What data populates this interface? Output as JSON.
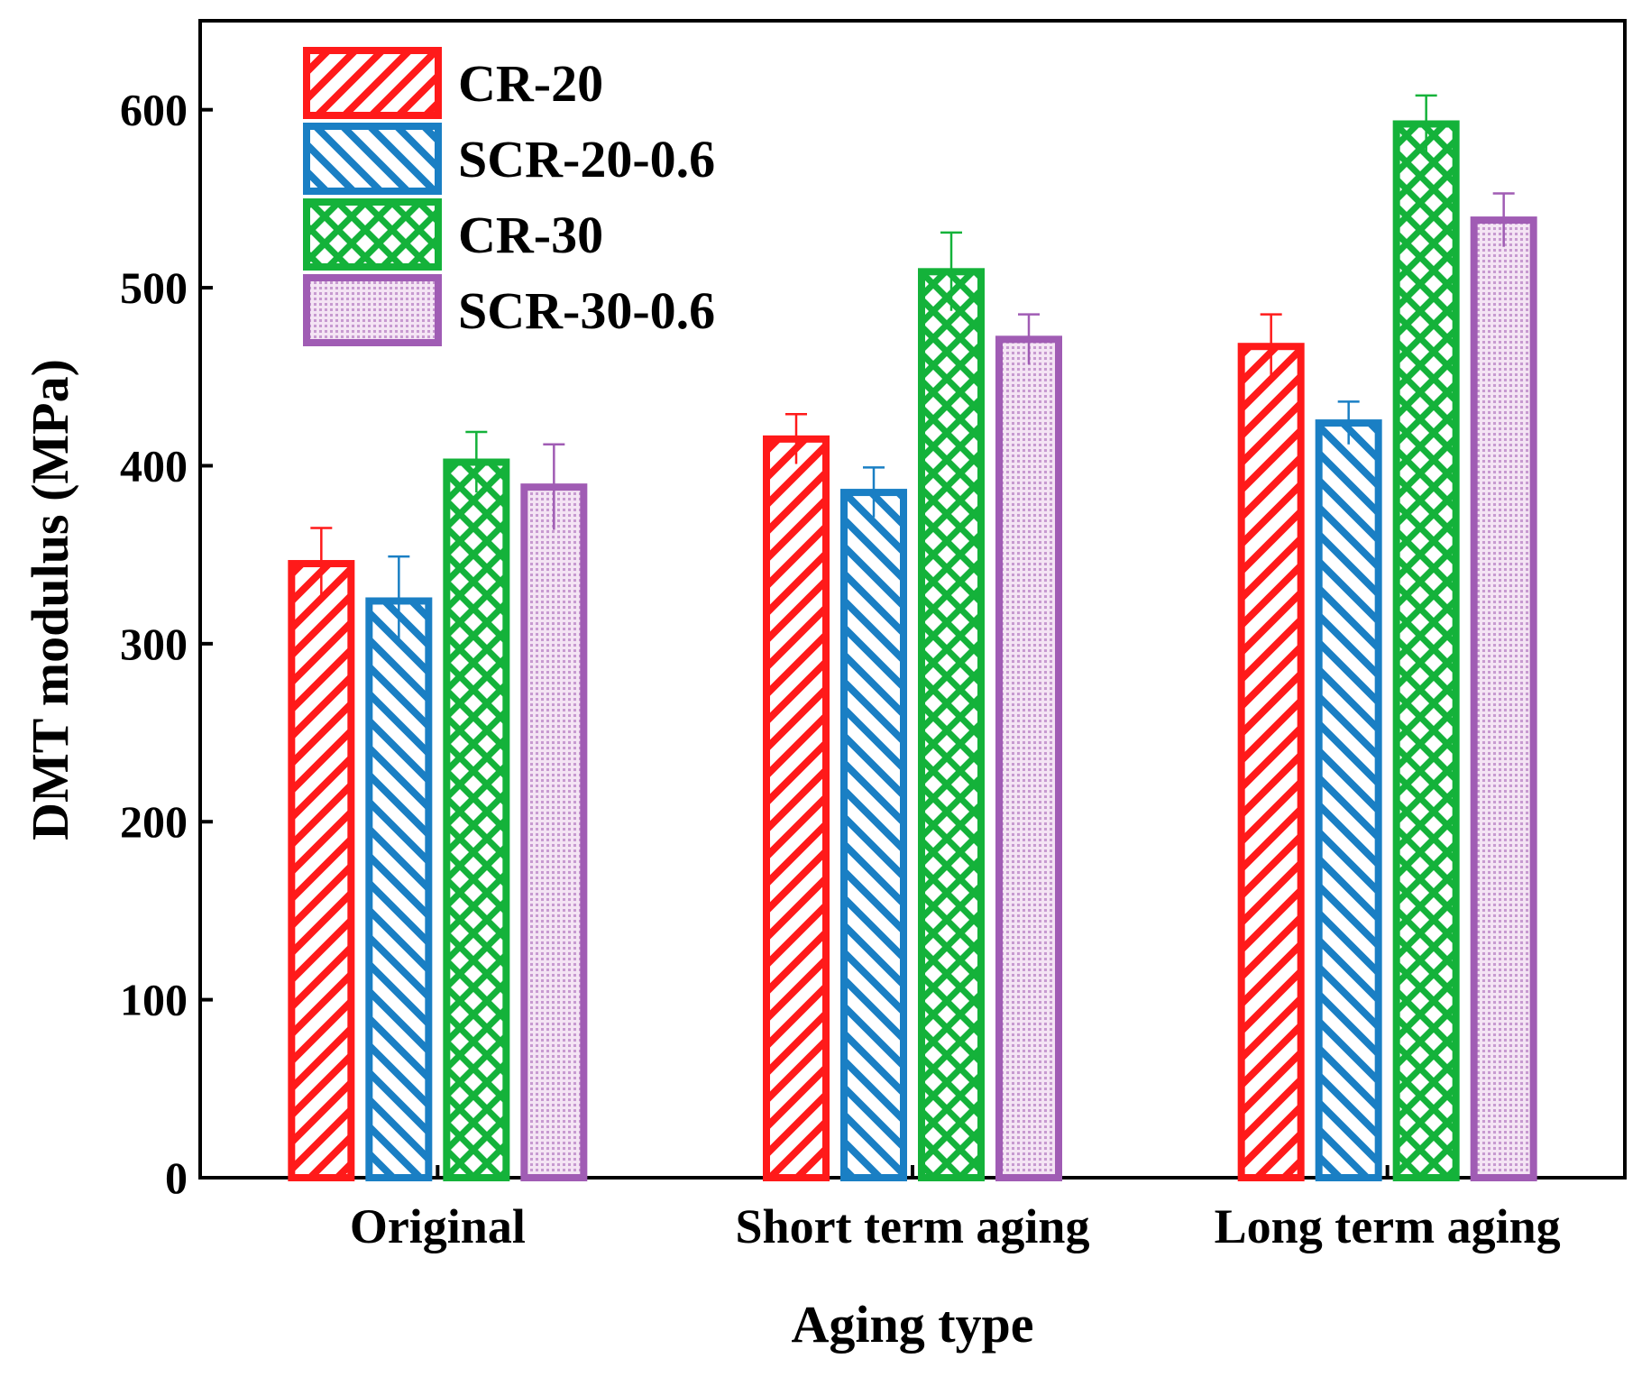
{
  "chart_data": {
    "type": "bar",
    "xlabel": "Aging type",
    "ylabel": "DMT modulus (MPa)",
    "ylim": [
      0,
      650
    ],
    "yticks": [
      0,
      100,
      200,
      300,
      400,
      500,
      600
    ],
    "categories": [
      "Original",
      "Short term aging",
      "Long term aging"
    ],
    "legend_position": "top-left",
    "series": [
      {
        "name": "CR-20",
        "color": "#ff1a1a",
        "pattern": "diagonal-forward",
        "values": [
          345,
          415,
          467
        ],
        "errors": [
          20,
          14,
          18
        ]
      },
      {
        "name": "SCR-20-0.6",
        "color": "#1a7fc4",
        "pattern": "diagonal-backward",
        "values": [
          324,
          385,
          424
        ],
        "errors": [
          25,
          14,
          12
        ]
      },
      {
        "name": "CR-30",
        "color": "#14b23a",
        "pattern": "crosshatch",
        "values": [
          402,
          509,
          592
        ],
        "errors": [
          17,
          22,
          16
        ]
      },
      {
        "name": "SCR-30-0.6",
        "color": "#a05cb4",
        "pattern": "dots",
        "values": [
          388,
          471,
          538
        ],
        "errors": [
          24,
          14,
          15
        ]
      }
    ]
  }
}
